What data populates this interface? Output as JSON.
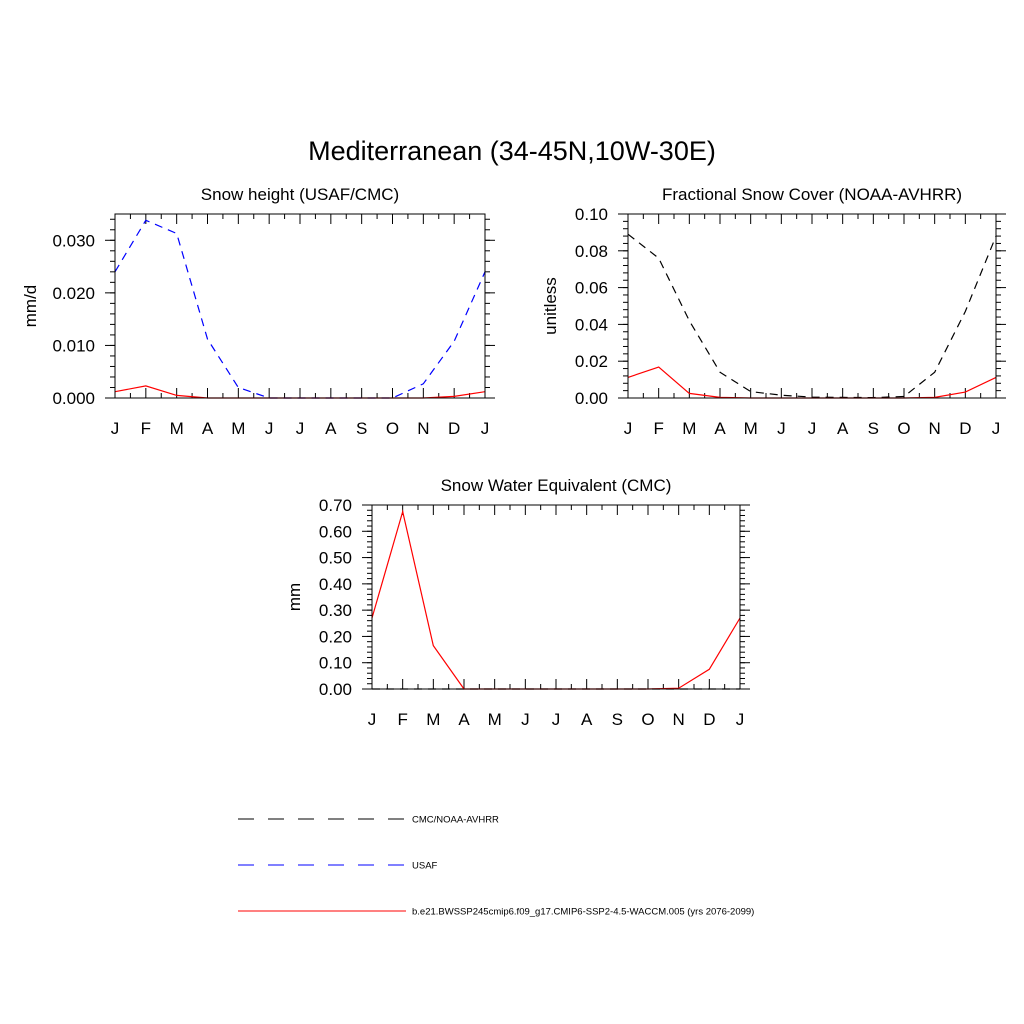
{
  "figure": {
    "title": "Mediterranean (34-45N,10W-30E)"
  },
  "legend": [
    {
      "label": "CMC/NOAA-AVHRR",
      "color": "#000000",
      "dash": "dashed"
    },
    {
      "label": "USAF",
      "color": "#0000ff",
      "dash": "dashed"
    },
    {
      "label": "b.e21.BWSSP245cmip6.f09_g17.CMIP6-SSP2-4.5-WACCM.005 (yrs 2076-2099)",
      "color": "#ff0000",
      "dash": "solid"
    }
  ],
  "chart_data": [
    {
      "type": "line",
      "title": "Snow height (USAF/CMC)",
      "xlabel": "",
      "ylabel": "mm/d",
      "categories": [
        "J",
        "F",
        "M",
        "A",
        "M",
        "J",
        "J",
        "A",
        "S",
        "O",
        "N",
        "D",
        "J"
      ],
      "ylim": [
        0,
        0.035
      ],
      "yticks": [
        0.0,
        0.01,
        0.02,
        0.03
      ],
      "ytick_labels": [
        "0.000",
        "0.010",
        "0.020",
        "0.030"
      ],
      "series": [
        {
          "name": "USAF",
          "color": "#0000ff",
          "dash": "dashed",
          "values": [
            0.024,
            0.0338,
            0.0313,
            0.0112,
            0.002,
            0.0,
            0.0,
            0.0,
            0.0,
            0.0,
            0.0027,
            0.0108,
            0.024
          ]
        },
        {
          "name": "b.e21.BWSSP245cmip6.f09_g17.CMIP6-SSP2-4.5-WACCM.005 (yrs 2076-2099)",
          "color": "#ff0000",
          "dash": "solid",
          "values": [
            0.0012,
            0.0023,
            0.0005,
            0.0,
            0.0,
            0.0,
            0.0,
            0.0,
            0.0,
            0.0,
            0.0,
            0.0003,
            0.0012
          ]
        }
      ]
    },
    {
      "type": "line",
      "title": "Fractional Snow Cover (NOAA-AVHRR)",
      "xlabel": "",
      "ylabel": "unitless",
      "categories": [
        "J",
        "F",
        "M",
        "A",
        "M",
        "J",
        "J",
        "A",
        "S",
        "O",
        "N",
        "D",
        "J"
      ],
      "ylim": [
        0,
        0.1
      ],
      "yticks": [
        0.0,
        0.02,
        0.04,
        0.06,
        0.08,
        0.1
      ],
      "ytick_labels": [
        "0.00",
        "0.02",
        "0.04",
        "0.06",
        "0.08",
        "0.10"
      ],
      "series": [
        {
          "name": "CMC/NOAA-AVHRR",
          "color": "#000000",
          "dash": "dashed",
          "values": [
            0.089,
            0.076,
            0.042,
            0.014,
            0.0035,
            0.0015,
            0.0005,
            0.0003,
            0.0002,
            0.0008,
            0.014,
            0.047,
            0.088
          ]
        },
        {
          "name": "b.e21.BWSSP245cmip6.f09_g17.CMIP6-SSP2-4.5-WACCM.005 (yrs 2076-2099)",
          "color": "#ff0000",
          "dash": "solid",
          "values": [
            0.0112,
            0.0168,
            0.0025,
            0.0003,
            0.0,
            0.0,
            0.0,
            0.0,
            0.0,
            0.0,
            0.0003,
            0.0032,
            0.0112
          ]
        }
      ]
    },
    {
      "type": "line",
      "title": "Snow Water Equivalent (CMC)",
      "xlabel": "",
      "ylabel": "mm",
      "categories": [
        "J",
        "F",
        "M",
        "A",
        "M",
        "J",
        "J",
        "A",
        "S",
        "O",
        "N",
        "D",
        "J"
      ],
      "ylim": [
        0,
        0.7
      ],
      "yticks": [
        0.0,
        0.1,
        0.2,
        0.3,
        0.4,
        0.5,
        0.6,
        0.7
      ],
      "ytick_labels": [
        "0.00",
        "0.10",
        "0.20",
        "0.30",
        "0.40",
        "0.50",
        "0.60",
        "0.70"
      ],
      "series": [
        {
          "name": "CMC/NOAA-AVHRR",
          "color": "#000000",
          "dash": "dashed",
          "values": [
            0.0,
            0.0,
            0.0,
            0.0,
            0.0,
            0.0,
            0.0,
            0.0,
            0.0,
            0.0,
            0.0,
            0.0,
            0.0
          ]
        },
        {
          "name": "b.e21.BWSSP245cmip6.f09_g17.CMIP6-SSP2-4.5-WACCM.005 (yrs 2076-2099)",
          "color": "#ff0000",
          "dash": "solid",
          "values": [
            0.27,
            0.675,
            0.165,
            0.0,
            0.0,
            0.0,
            0.0,
            0.0,
            0.0,
            0.0,
            0.003,
            0.075,
            0.27
          ]
        }
      ]
    }
  ]
}
